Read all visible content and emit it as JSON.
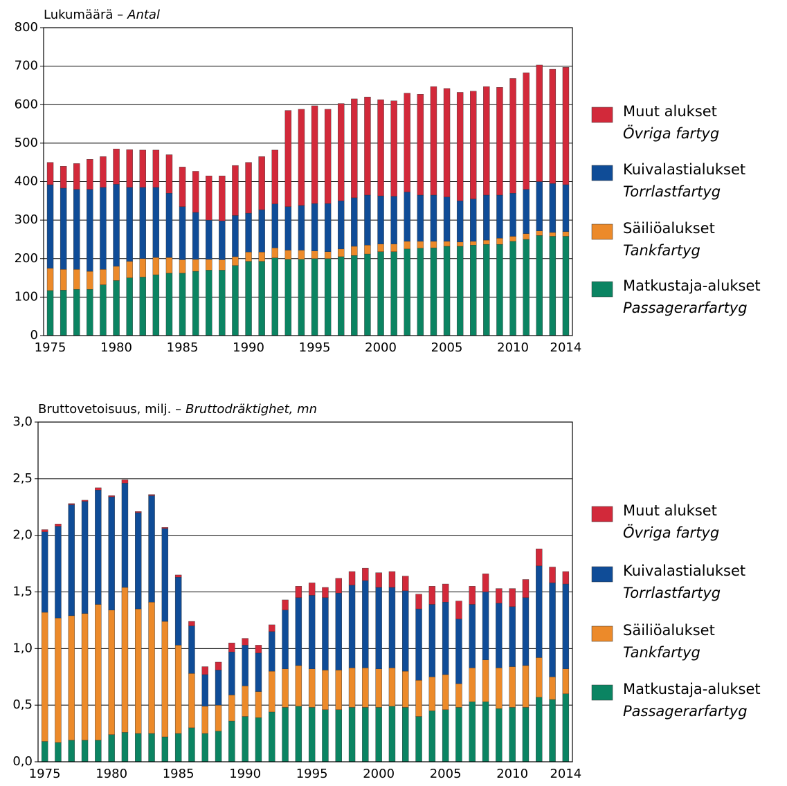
{
  "chart_data": [
    {
      "type": "stacked_bar",
      "y_label": "Lukumäärä –",
      "y_label_italic": "Antal",
      "categories": [
        1975,
        null,
        null,
        null,
        null,
        1980,
        null,
        null,
        null,
        null,
        1985,
        null,
        null,
        null,
        null,
        1990,
        null,
        null,
        null,
        null,
        1995,
        null,
        null,
        null,
        null,
        2000,
        null,
        null,
        null,
        null,
        2005,
        null,
        null,
        null,
        null,
        2010,
        null,
        null,
        null,
        2014
      ],
      "ylim": [
        0,
        800
      ],
      "yticks": [
        0,
        100,
        200,
        300,
        400,
        500,
        600,
        700,
        800
      ],
      "grid": true,
      "series": [
        {
          "name": "Matkustaja-alukset",
          "name_italic": "Passagerarfartyg",
          "color": "#0b8462",
          "values": [
            117,
            118,
            120,
            120,
            132,
            143,
            150,
            152,
            158,
            162,
            162,
            167,
            170,
            170,
            182,
            193,
            193,
            202,
            198,
            198,
            200,
            200,
            205,
            208,
            212,
            218,
            218,
            225,
            227,
            228,
            232,
            232,
            235,
            237,
            237,
            245,
            250,
            260,
            258,
            258
          ]
        },
        {
          "name": "Säiliöalukset",
          "name_italic": "Tankfartyg",
          "color": "#ec8a2a",
          "values": [
            58,
            54,
            52,
            47,
            40,
            37,
            43,
            48,
            45,
            41,
            35,
            31,
            28,
            27,
            23,
            24,
            24,
            26,
            24,
            24,
            20,
            18,
            20,
            24,
            23,
            20,
            20,
            20,
            18,
            17,
            13,
            11,
            10,
            11,
            16,
            13,
            15,
            12,
            10,
            12
          ]
        },
        {
          "name": "Kuivalastialukset",
          "name_italic": "Torrlastfartyg",
          "color": "#0f4c97",
          "values": [
            217,
            211,
            208,
            213,
            213,
            213,
            192,
            185,
            182,
            167,
            138,
            122,
            102,
            101,
            107,
            101,
            110,
            114,
            113,
            116,
            123,
            125,
            125,
            126,
            130,
            125,
            124,
            128,
            120,
            120,
            115,
            107,
            110,
            117,
            112,
            112,
            115,
            128,
            127,
            122
          ]
        },
        {
          "name": "Muut alukset",
          "name_italic": "Övriga fartyg",
          "color": "#d2293a",
          "values": [
            58,
            57,
            67,
            78,
            80,
            92,
            98,
            97,
            97,
            100,
            103,
            107,
            115,
            117,
            130,
            132,
            138,
            140,
            250,
            250,
            254,
            245,
            253,
            257,
            255,
            250,
            248,
            257,
            262,
            282,
            282,
            282,
            280,
            282,
            280,
            298,
            303,
            303,
            297,
            305
          ]
        }
      ]
    },
    {
      "type": "stacked_bar",
      "y_label": "Bruttovetoisuus, milj. –",
      "y_label_italic": "Bruttodräktighet, mn",
      "categories": [
        1975,
        null,
        null,
        null,
        null,
        1980,
        null,
        null,
        null,
        null,
        1985,
        null,
        null,
        null,
        null,
        1990,
        null,
        null,
        null,
        null,
        1995,
        null,
        null,
        null,
        null,
        2000,
        null,
        null,
        null,
        null,
        2005,
        null,
        null,
        null,
        null,
        2010,
        null,
        null,
        null,
        2014
      ],
      "ylim": [
        0,
        3
      ],
      "yticks": [
        {
          "value": 0,
          "label": "0,0"
        },
        {
          "value": 0.5,
          "label": "0,5"
        },
        {
          "value": 1,
          "label": "1,0"
        },
        {
          "value": 1.5,
          "label": "1,5"
        },
        {
          "value": 2,
          "label": "2,0"
        },
        {
          "value": 2.5,
          "label": "2,5"
        },
        {
          "value": 3,
          "label": "3,0"
        }
      ],
      "grid": true,
      "series": [
        {
          "name": "Matkustaja-alukset",
          "name_italic": "Passagerarfartyg",
          "color": "#0b8462",
          "values": [
            0.18,
            0.17,
            0.19,
            0.19,
            0.19,
            0.24,
            0.26,
            0.25,
            0.25,
            0.22,
            0.25,
            0.3,
            0.25,
            0.27,
            0.36,
            0.4,
            0.39,
            0.44,
            0.48,
            0.49,
            0.48,
            0.46,
            0.46,
            0.48,
            0.48,
            0.48,
            0.49,
            0.48,
            0.4,
            0.45,
            0.46,
            0.48,
            0.53,
            0.53,
            0.47,
            0.48,
            0.48,
            0.57,
            0.55,
            0.6
          ]
        },
        {
          "name": "Säiliöalukset",
          "name_italic": "Tankfartyg",
          "color": "#ec8a2a",
          "values": [
            1.14,
            1.1,
            1.1,
            1.12,
            1.2,
            1.1,
            1.28,
            1.1,
            1.16,
            1.02,
            0.78,
            0.48,
            0.24,
            0.23,
            0.23,
            0.27,
            0.23,
            0.36,
            0.34,
            0.36,
            0.34,
            0.35,
            0.35,
            0.35,
            0.35,
            0.34,
            0.34,
            0.32,
            0.32,
            0.3,
            0.31,
            0.21,
            0.3,
            0.37,
            0.36,
            0.36,
            0.37,
            0.35,
            0.2,
            0.22
          ]
        },
        {
          "name": "Kuivalastialukset",
          "name_italic": "Torrlastfartyg",
          "color": "#0f4c97",
          "values": [
            0.71,
            0.81,
            0.98,
            0.99,
            1.01,
            1.0,
            0.92,
            0.85,
            0.94,
            0.82,
            0.6,
            0.42,
            0.28,
            0.31,
            0.38,
            0.36,
            0.34,
            0.35,
            0.52,
            0.6,
            0.65,
            0.64,
            0.68,
            0.73,
            0.77,
            0.72,
            0.71,
            0.71,
            0.63,
            0.64,
            0.64,
            0.57,
            0.56,
            0.6,
            0.57,
            0.53,
            0.6,
            0.81,
            0.83,
            0.75
          ]
        },
        {
          "name": "Muut alukset",
          "name_italic": "Övriga fartyg",
          "color": "#d2293a",
          "values": [
            0.02,
            0.02,
            0.01,
            0.01,
            0.02,
            0.01,
            0.03,
            0.01,
            0.01,
            0.01,
            0.02,
            0.04,
            0.07,
            0.07,
            0.08,
            0.06,
            0.07,
            0.06,
            0.09,
            0.1,
            0.11,
            0.09,
            0.13,
            0.12,
            0.11,
            0.13,
            0.14,
            0.13,
            0.13,
            0.16,
            0.16,
            0.16,
            0.16,
            0.16,
            0.13,
            0.16,
            0.16,
            0.15,
            0.14,
            0.11
          ]
        }
      ]
    }
  ]
}
